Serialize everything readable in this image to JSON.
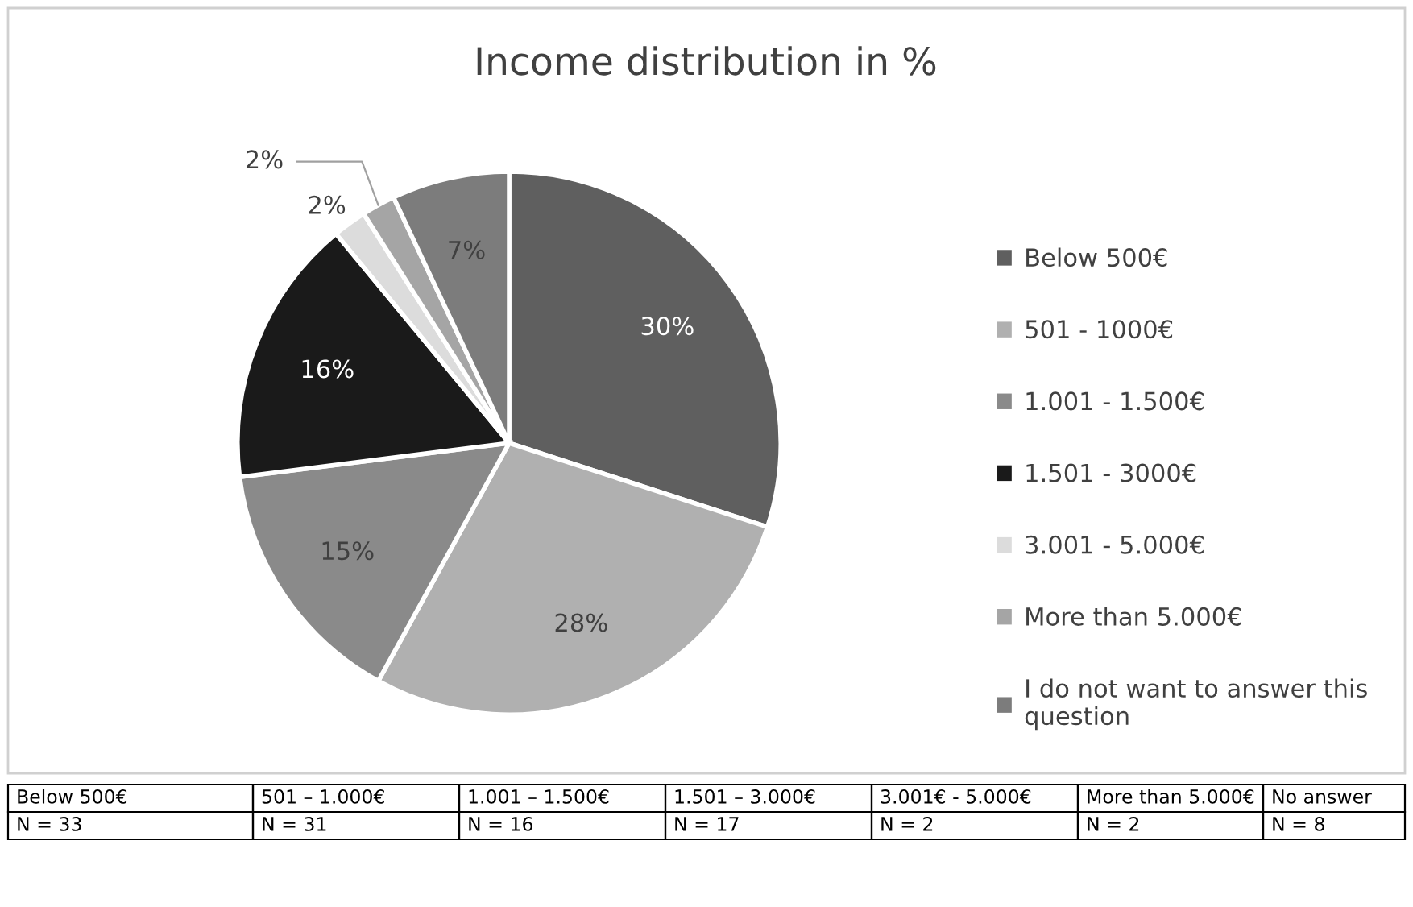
{
  "chart_data": {
    "type": "pie",
    "title": "Income distribution in %",
    "categories": [
      "Below 500€",
      "501 - 1000€",
      "1.001 - 1.500€",
      "1.501 - 3000€",
      "3.001 - 5.000€",
      "More than 5.000€",
      "I do not want to answer this question"
    ],
    "values": [
      30,
      28,
      15,
      16,
      2,
      2,
      7
    ],
    "colors": [
      "#5f5f5f",
      "#b0b0b0",
      "#8a8a8a",
      "#1a1a1a",
      "#dcdcdc",
      "#a5a5a5",
      "#7c7c7c"
    ],
    "value_labels": [
      "30%",
      "28%",
      "15%",
      "16%",
      "2%",
      "2%",
      "7%"
    ],
    "legend": "right",
    "annotations": [
      "Below 500€",
      "501 – 1.000€",
      "1.001 – 1.500€",
      "1.501 – 3.000€",
      "3.001€ - 5.000€",
      "More than 5.000€",
      "No answer",
      "N = 33",
      "N = 31",
      "N = 16",
      "N = 17",
      "N = 2",
      "N = 2",
      "N = 8"
    ]
  }
}
